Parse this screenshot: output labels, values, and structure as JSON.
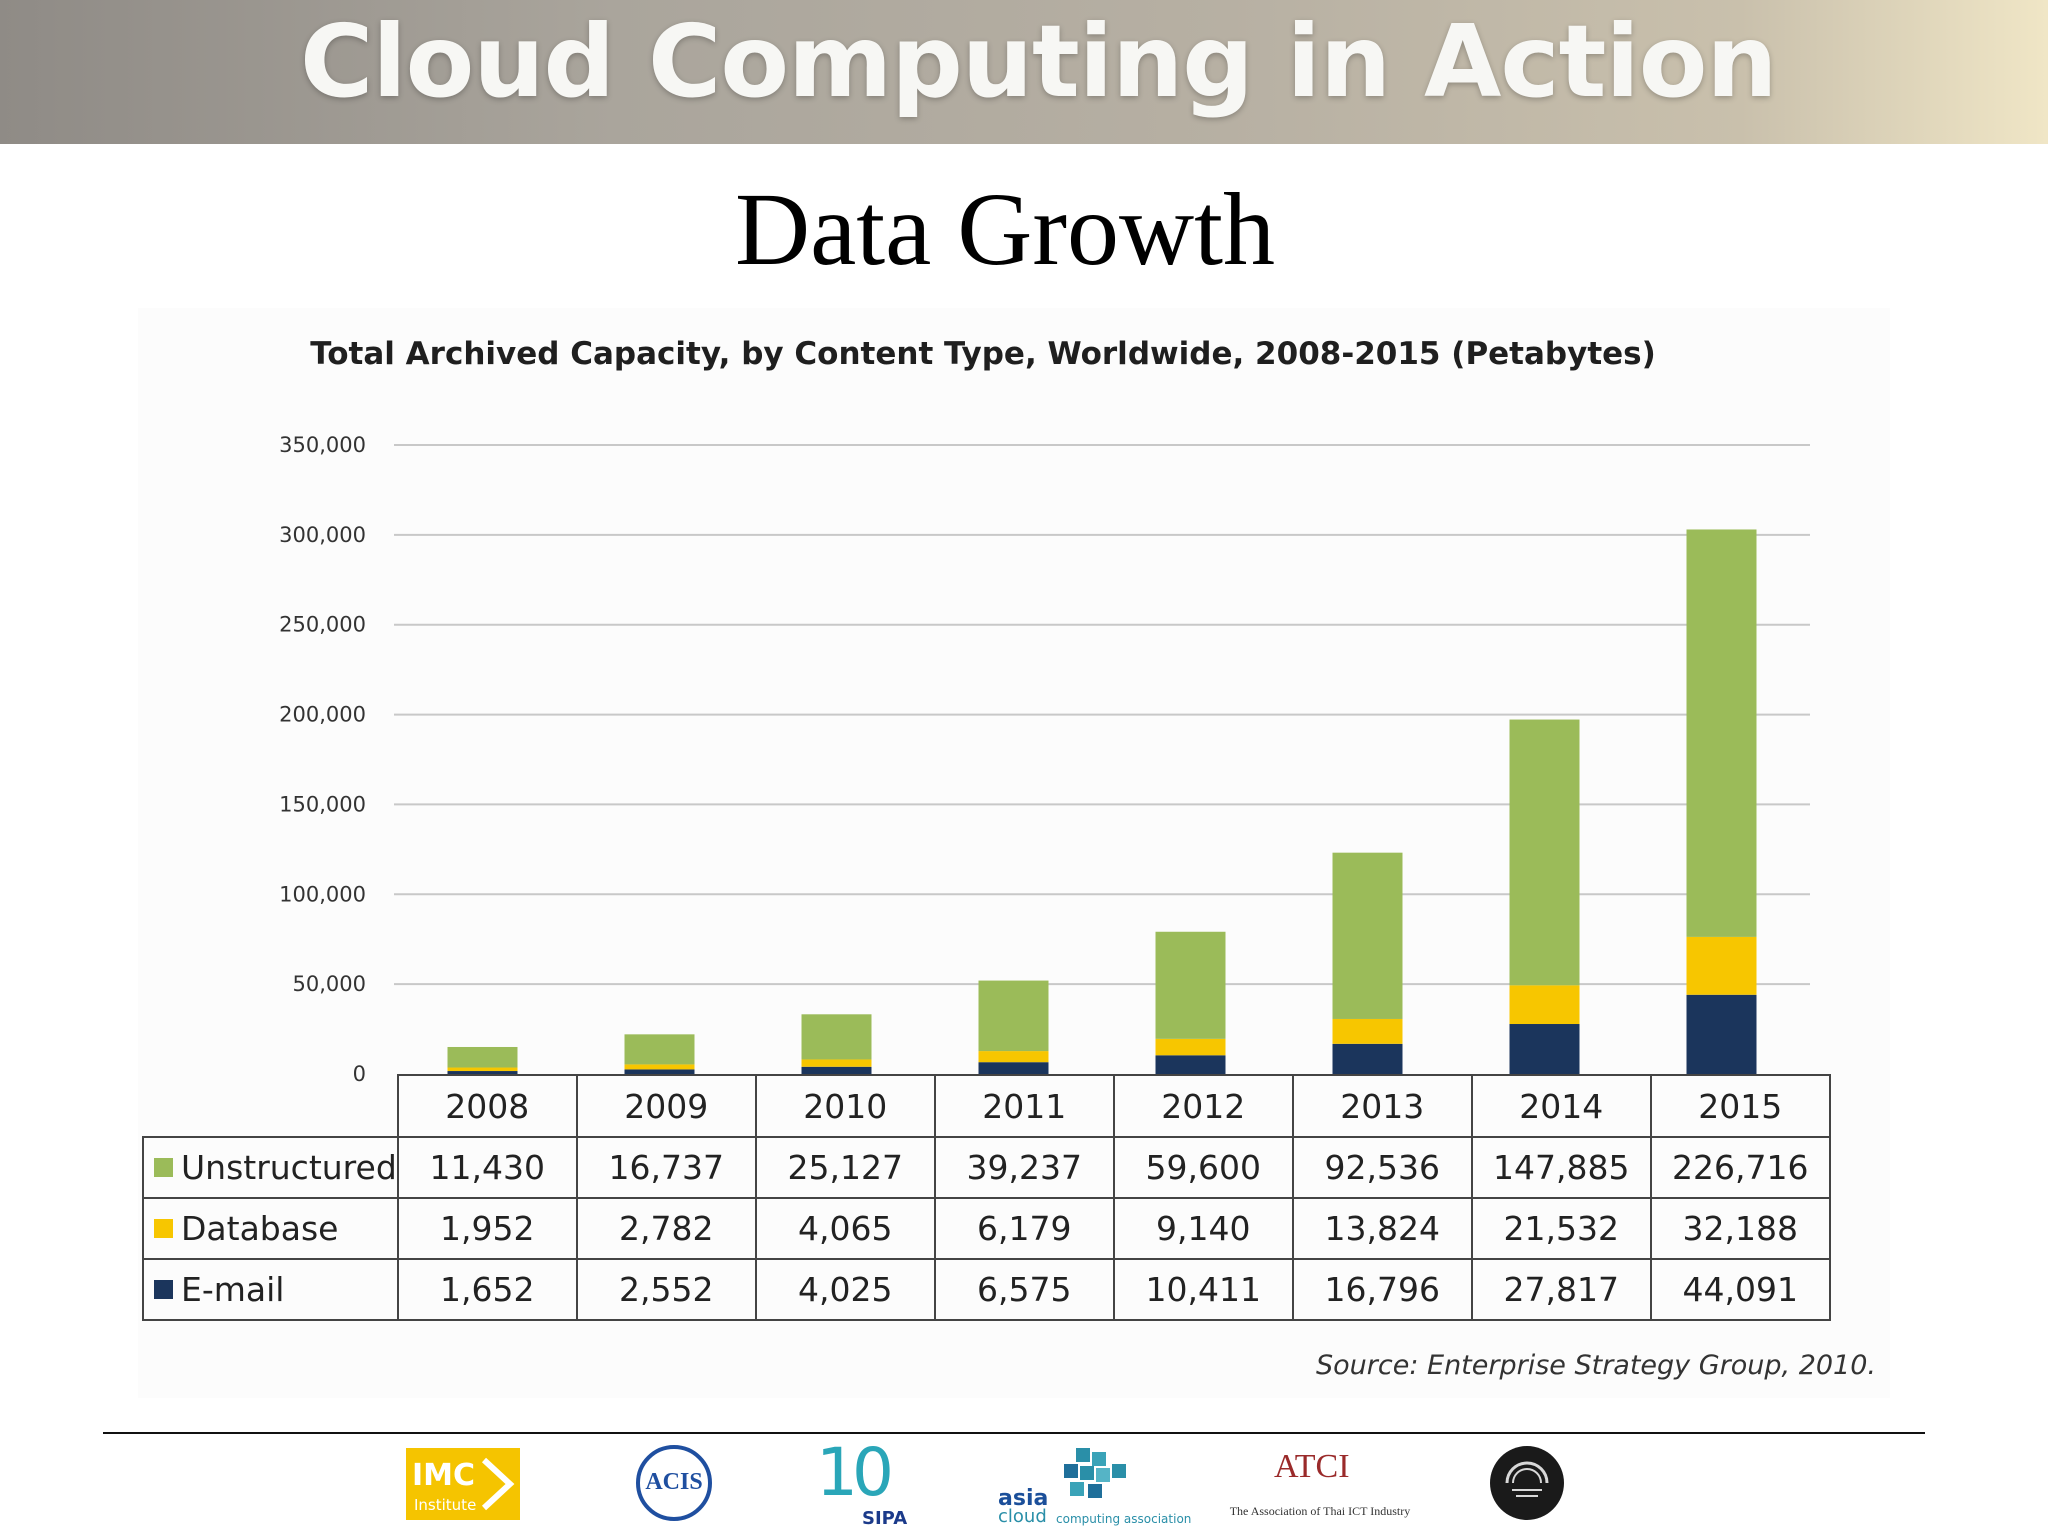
{
  "header": {
    "banner_title": "Cloud Computing in Action",
    "slide_title": "Data Growth"
  },
  "chart_data": {
    "type": "bar",
    "stacked": true,
    "title": "Total Archived Capacity, by Content Type, Worldwide, 2008-2015 (Petabytes)",
    "categories": [
      "2008",
      "2009",
      "2010",
      "2011",
      "2012",
      "2013",
      "2014",
      "2015"
    ],
    "series": [
      {
        "name": "E-mail",
        "color": "#1b355c",
        "values": [
          1652,
          2552,
          4025,
          6575,
          10411,
          16796,
          27817,
          44091
        ],
        "labels": [
          "1,652",
          "2,552",
          "4,025",
          "6,575",
          "10,411",
          "16,796",
          "27,817",
          "44,091"
        ]
      },
      {
        "name": "Database",
        "color": "#f7c600",
        "values": [
          1952,
          2782,
          4065,
          6179,
          9140,
          13824,
          21532,
          32188
        ],
        "labels": [
          "1,952",
          "2,782",
          "4,065",
          "6,179",
          "9,140",
          "13,824",
          "21,532",
          "32,188"
        ]
      },
      {
        "name": "Unstructured",
        "color": "#9bbb59",
        "values": [
          11430,
          16737,
          25127,
          39237,
          59600,
          92536,
          147885,
          226716
        ],
        "labels": [
          "11,430",
          "16,737",
          "25,127",
          "39,237",
          "59,600",
          "92,536",
          "147,885",
          "226,716"
        ]
      }
    ],
    "table_order": [
      "Unstructured",
      "Database",
      "E-mail"
    ],
    "ylim": [
      0,
      350000
    ],
    "yticks": [
      0,
      50000,
      100000,
      150000,
      200000,
      250000,
      300000,
      350000
    ],
    "ytick_labels": [
      "0",
      "50,000",
      "100,000",
      "150,000",
      "200,000",
      "250,000",
      "300,000",
      "350,000"
    ],
    "xlabel": "",
    "ylabel": "",
    "grid": true,
    "legend": "data table below chart",
    "source": "Source: Enterprise Strategy Group, 2010."
  },
  "footer": {
    "logos": [
      {
        "name": "IMC Institute",
        "text": "IMC",
        "subtext": "Institute"
      },
      {
        "name": "ACIS",
        "text": "ACIS"
      },
      {
        "name": "SIPA 10th",
        "text": "10",
        "subtext": "SIPA"
      },
      {
        "name": "Asia Cloud Computing Association",
        "text": "asia",
        "subtext": "cloud",
        "tagline": "computing association"
      },
      {
        "name": "ATCI",
        "text": "ATCI",
        "tagline": "The Association of Thai ICT Industry"
      },
      {
        "name": "Cloud Council",
        "text": ""
      }
    ]
  }
}
